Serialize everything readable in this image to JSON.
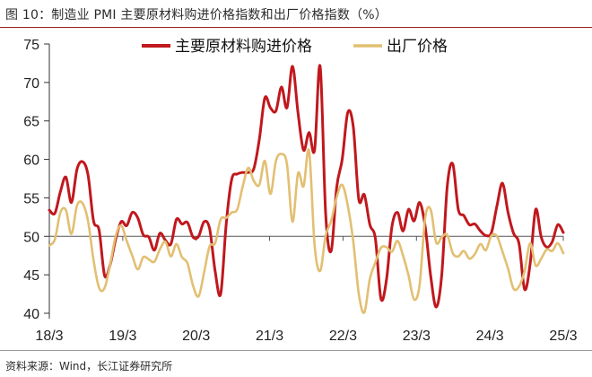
{
  "figure": {
    "title": "图 10：制造业 PMI 主要原材料购进价格指数和出厂价格指数（%）",
    "source": "资料来源：Wind，长江证券研究所"
  },
  "chart_data": {
    "type": "line",
    "title": "",
    "xlabel": "",
    "ylabel": "",
    "x_ticks": [
      "18/3",
      "19/3",
      "20/3",
      "21/3",
      "22/3",
      "23/3",
      "24/3",
      "25/3"
    ],
    "y_ticks": [
      40,
      45,
      50,
      55,
      60,
      65,
      70,
      75
    ],
    "ylim": [
      40,
      75
    ],
    "x_start": "2018-03",
    "x_end": "2025-03",
    "reference_line": 50,
    "legend_position": "top",
    "grid": false,
    "series": [
      {
        "name": "主要原材料购进价格",
        "color": "#c0181d",
        "values": [
          53.4,
          53.0,
          55.8,
          57.7,
          54.4,
          58.7,
          59.7,
          58.0,
          52.0,
          50.8,
          44.9,
          46.3,
          49.6,
          51.9,
          51.4,
          53.1,
          52.4,
          50.2,
          49.9,
          48.2,
          50.4,
          49.5,
          49.0,
          52.2,
          51.6,
          51.8,
          49.9,
          50.0,
          51.9,
          51.0,
          45.5,
          42.5,
          51.6,
          57.4,
          58.1,
          58.3,
          58.3,
          58.8,
          62.6,
          68.0,
          66.7,
          66.3,
          69.4,
          66.7,
          72.1,
          66.0,
          61.2,
          63.5,
          61.2,
          72.1,
          52.9,
          48.1,
          56.4,
          60.0,
          66.1,
          64.2,
          54.8,
          55.4,
          51.5,
          49.7,
          41.9,
          44.3,
          51.3,
          53.1,
          50.7,
          53.5,
          52.0,
          54.4,
          51.3,
          44.9,
          40.8,
          45.0,
          56.5,
          59.4,
          53.5,
          52.7,
          51.5,
          51.6,
          50.7,
          50.1,
          50.5,
          54.0,
          56.9,
          53.1,
          50.4,
          49.0,
          43.1,
          46.4,
          53.5,
          49.9,
          48.6,
          49.3,
          51.5,
          50.5
        ]
      },
      {
        "name": "出厂价格",
        "color": "#e2bf72",
        "values": [
          48.8,
          49.6,
          53.1,
          53.4,
          50.3,
          54.0,
          54.3,
          52.0,
          46.9,
          43.3,
          43.3,
          46.3,
          50.0,
          51.4,
          49.4,
          47.5,
          45.7,
          47.3,
          47.0,
          46.7,
          48.3,
          49.3,
          47.4,
          49.0,
          47.3,
          46.5,
          43.6,
          42.2,
          45.3,
          48.7,
          49.1,
          52.2,
          52.4,
          53.1,
          53.5,
          56.5,
          58.9,
          57.2,
          56.7,
          59.8,
          55.5,
          59.8,
          60.7,
          59.4,
          51.9,
          58.2,
          56.5,
          61.1,
          48.9,
          45.5,
          50.1,
          52.0,
          55.1,
          56.7,
          54.0,
          49.3,
          42.5,
          40.1,
          44.5,
          46.6,
          48.5,
          48.6,
          48.0,
          49.4,
          47.5,
          44.9,
          41.8,
          43.7,
          52.4,
          53.5,
          49.2,
          49.9,
          50.2,
          47.8,
          47.4,
          48.1,
          47.1,
          47.7,
          49.0,
          48.2,
          50.1,
          50.0,
          48.0,
          45.8,
          43.2,
          43.5,
          45.5,
          49.1,
          46.2,
          47.1,
          48.3,
          48.1,
          49.1,
          47.8
        ]
      }
    ]
  }
}
